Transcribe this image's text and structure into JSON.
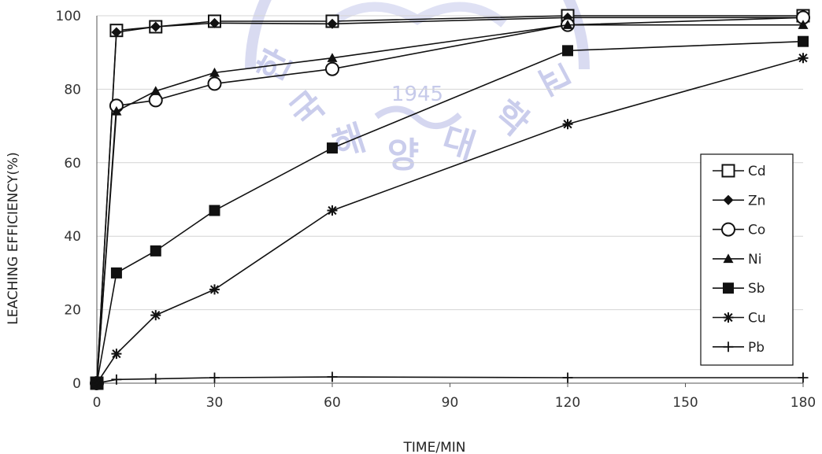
{
  "chart_data": {
    "type": "line",
    "title": "",
    "xlabel": "TIME/MIN",
    "ylabel": "LEACHING EFFICIENCY(%)",
    "xlim": [
      0,
      180
    ],
    "ylim": [
      0,
      100
    ],
    "xticks": [
      0,
      30,
      60,
      90,
      120,
      150,
      180
    ],
    "yticks": [
      0,
      20,
      40,
      60,
      80,
      100
    ],
    "grid": "horizontal",
    "legend_position": "right",
    "x": [
      0,
      5,
      15,
      30,
      60,
      120,
      180
    ],
    "series": [
      {
        "name": "Cd",
        "marker": "square-open",
        "values": [
          0,
          96,
          97,
          98.5,
          98.5,
          100,
          100
        ]
      },
      {
        "name": "Zn",
        "marker": "diamond",
        "values": [
          0,
          95.5,
          97,
          98,
          97.8,
          99.5,
          99.5
        ]
      },
      {
        "name": "Co",
        "marker": "circle-open",
        "values": [
          0,
          75.5,
          77,
          81.5,
          85.5,
          97.5,
          99.5
        ]
      },
      {
        "name": "Ni",
        "marker": "triangle",
        "values": [
          0,
          74,
          79.5,
          84.5,
          88.5,
          97.5,
          97.5
        ]
      },
      {
        "name": "Sb",
        "marker": "square",
        "values": [
          0,
          30,
          36,
          47,
          64,
          90.5,
          93
        ]
      },
      {
        "name": "Cu",
        "marker": "star",
        "values": [
          0,
          8,
          18.5,
          25.5,
          47,
          70.5,
          88.5
        ]
      },
      {
        "name": "Pb",
        "marker": "plus",
        "values": [
          0,
          1,
          1.2,
          1.5,
          1.7,
          1.5,
          1.5
        ]
      }
    ]
  },
  "watermark": {
    "year": "1945",
    "glyphs": [
      "한",
      "국",
      "해",
      "양",
      "대",
      "학",
      "교"
    ]
  }
}
